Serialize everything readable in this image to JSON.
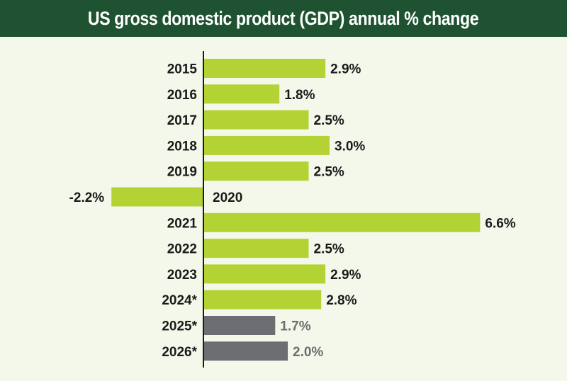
{
  "chart_data": {
    "type": "bar",
    "orientation": "horizontal",
    "title": "US gross domestic product (GDP) annual % change",
    "categories": [
      "2015",
      "2016",
      "2017",
      "2018",
      "2019",
      "2020",
      "2021",
      "2022",
      "2023",
      "2024*",
      "2025*",
      "2026*"
    ],
    "values": [
      2.9,
      1.8,
      2.5,
      3.0,
      2.5,
      -2.2,
      6.6,
      2.5,
      2.9,
      2.8,
      1.7,
      2.0
    ],
    "data_labels": [
      "2.9%",
      "1.8%",
      "2.5%",
      "3.0%",
      "2.5%",
      "-2.2%",
      "6.6%",
      "2.5%",
      "2.9%",
      "2.8%",
      "1.7%",
      "2.0%"
    ],
    "forecast": [
      false,
      false,
      false,
      false,
      false,
      false,
      false,
      false,
      false,
      false,
      true,
      true
    ],
    "xlim": [
      -2.2,
      6.6
    ],
    "grid": false,
    "colors": {
      "actual": "#b3d334",
      "forecast": "#6d6e71",
      "header": "#1e5230",
      "background": "#f4f8ea",
      "text": "#1a1a1a"
    }
  }
}
